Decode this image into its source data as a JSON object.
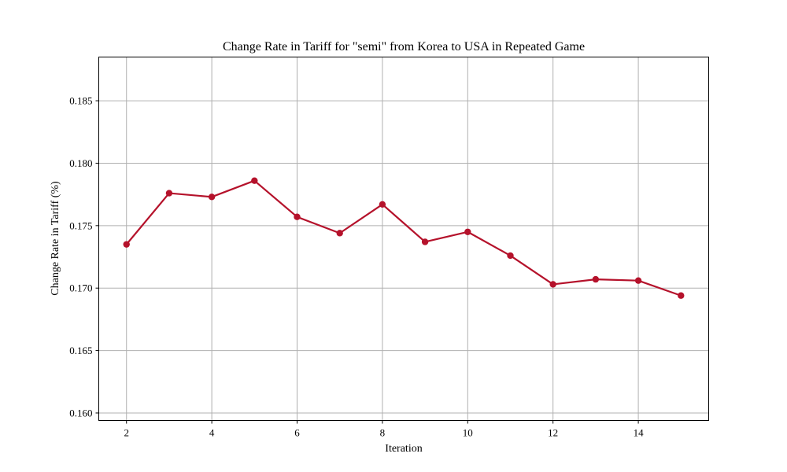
{
  "chart_data": {
    "type": "line",
    "title": "Change Rate in Tariff for \"semi\" from Korea to USA in Repeated Game",
    "xlabel": "Iteration",
    "ylabel": "Change Rate in Tariff (%)",
    "xlim": [
      1.35,
      15.65
    ],
    "ylim": [
      0.1594,
      0.1885
    ],
    "xticks": [
      2,
      4,
      6,
      8,
      10,
      12,
      14
    ],
    "yticks": [
      0.16,
      0.165,
      0.17,
      0.175,
      0.18,
      0.185
    ],
    "ytick_labels": [
      "0.160",
      "0.165",
      "0.170",
      "0.175",
      "0.180",
      "0.185"
    ],
    "grid": true,
    "series": [
      {
        "color": "#b5122b",
        "marker": "circle",
        "x": [
          2,
          3,
          4,
          5,
          6,
          7,
          8,
          9,
          10,
          11,
          12,
          13,
          14,
          15
        ],
        "y": [
          0.1735,
          0.1776,
          0.1773,
          0.1786,
          0.1757,
          0.1744,
          0.1767,
          0.1737,
          0.1745,
          0.1726,
          0.1703,
          0.1707,
          0.1706,
          0.1694
        ]
      }
    ]
  }
}
